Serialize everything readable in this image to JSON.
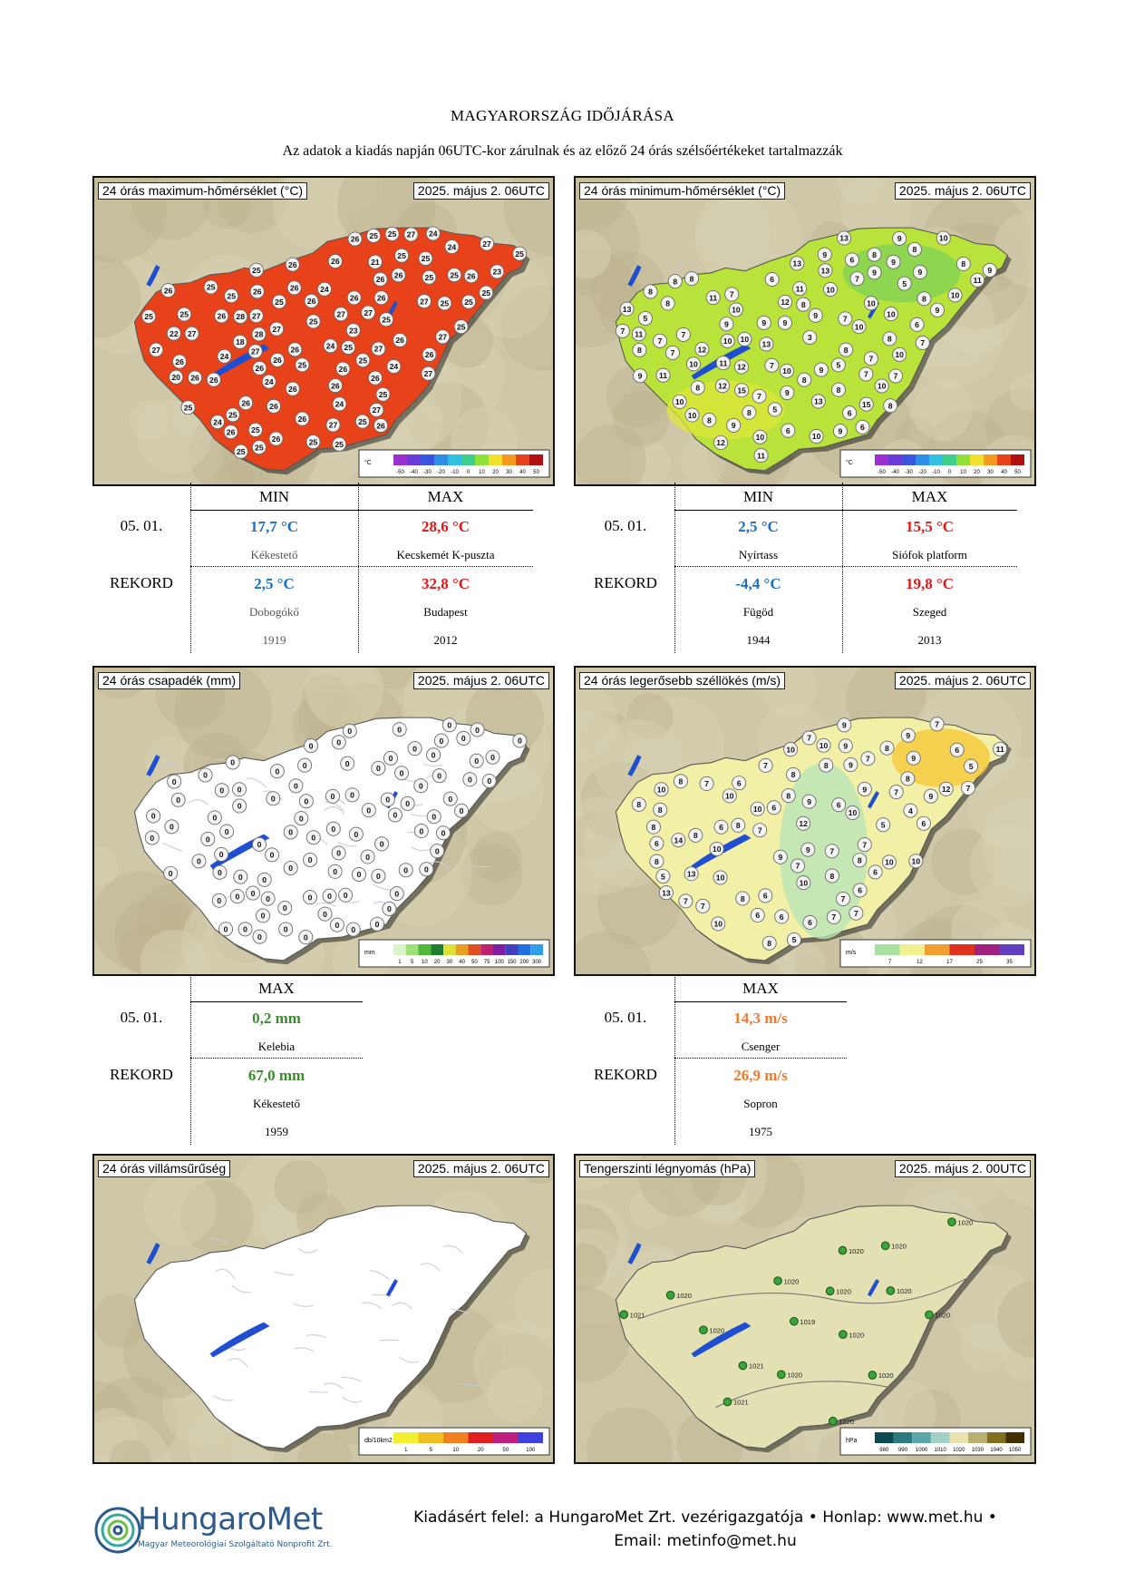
{
  "header": {
    "title": "MAGYARORSZÁG IDŐJÁRÁSA",
    "subtitle": "Az adatok a kiadás napján 06UTC-kor zárulnak és az előző 24 órás szélsőértékeket tartalmazzák"
  },
  "maps": {
    "tmax": {
      "title": "24 órás maximum-hőmérséklet (°C)",
      "date": "2025. május 2. 06UTC",
      "legend_unit": "°C",
      "legend_ticks": [
        "-50",
        "-40",
        "-30",
        "-20",
        "-10",
        "0",
        "10",
        "20",
        "30",
        "40",
        "50"
      ],
      "station_values": [
        "24",
        "26",
        "24",
        "26",
        "23",
        "24",
        "25",
        "25",
        "25",
        "25",
        "27",
        "26",
        "20",
        "25",
        "24",
        "25",
        "25",
        "25",
        "26",
        "25",
        "18",
        "26",
        "25",
        "26",
        "25",
        "25",
        "24",
        "25",
        "25",
        "27",
        "26",
        "25",
        "25",
        "26",
        "27",
        "26",
        "25",
        "21",
        "26",
        "24",
        "26",
        "24",
        "25",
        "23",
        "27",
        "26",
        "26",
        "27",
        "26",
        "25",
        "25",
        "22",
        "26",
        "24",
        "25",
        "26",
        "28",
        "25",
        "27",
        "26",
        "26",
        "24",
        "26",
        "27",
        "26",
        "26",
        "25",
        "27",
        "26",
        "25",
        "27",
        "25",
        "25",
        "25",
        "26",
        "26",
        "26",
        "27",
        "26",
        "25",
        "26",
        "27",
        "26",
        "25",
        "26",
        "25",
        "27",
        "28",
        "26",
        "27",
        "25",
        "27",
        "27",
        "26"
      ]
    },
    "tmin": {
      "title": "24 órás minimum-hőmérséklet (°C)",
      "date": "2025. május 2. 06UTC",
      "legend_unit": "°C",
      "legend_ticks": [
        "-50",
        "-40",
        "-30",
        "-20",
        "-10",
        "0",
        "10",
        "20",
        "30",
        "40",
        "50"
      ],
      "station_values": [
        "8",
        "11",
        "8",
        "8",
        "9",
        "13",
        "10",
        "5",
        "6",
        "3",
        "10",
        "9",
        "10",
        "6",
        "7",
        "12",
        "9",
        "11",
        "10",
        "10",
        "9",
        "7",
        "7",
        "8",
        "5",
        "7",
        "9",
        "7",
        "10",
        "8",
        "13",
        "11",
        "13",
        "9",
        "8",
        "8",
        "10",
        "13",
        "11",
        "10",
        "7",
        "11",
        "10",
        "10",
        "6",
        "9",
        "12",
        "8",
        "13",
        "5",
        "10",
        "8",
        "9",
        "6",
        "10",
        "15",
        "10",
        "9",
        "10",
        "12",
        "6",
        "13",
        "10",
        "8",
        "8",
        "7",
        "8",
        "7",
        "8",
        "10",
        "9",
        "7",
        "6",
        "8",
        "9",
        "15",
        "10",
        "7",
        "9",
        "12",
        "9",
        "7",
        "8",
        "11",
        "8",
        "7",
        "9",
        "5",
        "8",
        "7",
        "11",
        "9",
        "8",
        "12",
        "9"
      ]
    },
    "precip": {
      "title": "24 órás csapadék (mm)",
      "date": "2025. május 2. 06UTC",
      "legend_unit": "mm",
      "legend_ticks": [
        "1",
        "5",
        "10",
        "20",
        "30",
        "40",
        "50",
        "75",
        "100",
        "150",
        "200",
        "300"
      ],
      "station_values": [
        "0",
        "0",
        "0",
        "0",
        "0",
        "0",
        "0",
        "0",
        "0",
        "0",
        "0",
        "0",
        "0",
        "0",
        "0",
        "0",
        "0",
        "0",
        "0",
        "0",
        "0",
        "0",
        "0",
        "0",
        "0",
        "0",
        "0",
        "0",
        "0",
        "0",
        "0",
        "0",
        "0",
        "0",
        "0",
        "0",
        "0",
        "0",
        "0",
        "0",
        "0",
        "0",
        "0",
        "0",
        "0",
        "0",
        "0",
        "0",
        "0",
        "0",
        "0",
        "0",
        "0",
        "0",
        "0",
        "0",
        "0",
        "0",
        "0",
        "0",
        "0",
        "0",
        "0",
        "0",
        "0",
        "0",
        "0",
        "0",
        "0",
        "0",
        "0",
        "0",
        "0",
        "0",
        "0",
        "0",
        "0",
        "0",
        "0",
        "0",
        "0",
        "0",
        "0",
        "0",
        "0",
        "0",
        "0",
        "0",
        "0",
        "0",
        "0",
        "0",
        "0",
        "0"
      ]
    },
    "wind": {
      "title": "24 órás legerősebb széllökés (m/s)",
      "date": "2025. május 2. 06UTC",
      "legend_unit": "m/s",
      "legend_ticks": [
        "7",
        "12",
        "17",
        "25",
        "35"
      ],
      "station_values": [
        "6",
        "13",
        "10",
        "10",
        "6",
        "8",
        "8",
        "12",
        "14",
        "6",
        "5",
        "6",
        "8",
        "7",
        "9",
        "10",
        "10",
        "8",
        "8",
        "6",
        "8",
        "13",
        "5",
        "8",
        "7",
        "12",
        "9",
        "9",
        "7",
        "6",
        "10",
        "10",
        "10",
        "7",
        "9",
        "7",
        "8",
        "11",
        "7",
        "6",
        "7",
        "7",
        "8",
        "7",
        "9",
        "7",
        "10",
        "5",
        "6",
        "8",
        "6",
        "9",
        "6",
        "9",
        "7",
        "7",
        "6",
        "7",
        "10",
        "9",
        "8",
        "7",
        "6",
        "8",
        "9",
        "8",
        "8",
        "10",
        "10",
        "7",
        "7",
        "4",
        "8",
        "8",
        "9",
        "5",
        "10",
        "6"
      ]
    },
    "lightning": {
      "title": "24 órás villámsűrűség",
      "date": "2025. május 2. 06UTC",
      "legend_unit": "db/10km2",
      "legend_ticks": [
        "1",
        "5",
        "10",
        "20",
        "50",
        "100"
      ]
    },
    "pressure": {
      "title": "Tengerszinti légnyomás (hPa)",
      "date": "2025. május 2. 00UTC",
      "legend_unit": "hPa",
      "legend_ticks": [
        "980",
        "990",
        "1000",
        "1010",
        "1020",
        "1030",
        "1040",
        "1050"
      ],
      "station_values": [
        "1021",
        "1021",
        "1020",
        "1020",
        "1020",
        "1020",
        "1021",
        "1020",
        "1020",
        "1020",
        "1020",
        "1020",
        "1020",
        "1020",
        "1020",
        "1019",
        "1020"
      ]
    }
  },
  "temp_table_left": {
    "col_min": "MIN",
    "col_max": "MAX",
    "row1_label": "05. 01.",
    "row1_min_value": "17,7 °C",
    "row1_min_place": "Kékestető",
    "row1_max_value": "28,6 °C",
    "row1_max_place": "Kecskemét K-puszta",
    "row2_label": "REKORD",
    "row2_min_value": "2,5 °C",
    "row2_min_place": "Dobogókő",
    "row2_min_year": "1919",
    "row2_max_value": "32,8 °C",
    "row2_max_place": "Budapest",
    "row2_max_year": "2012"
  },
  "temp_table_right": {
    "col_min": "MIN",
    "col_max": "MAX",
    "row1_label": "05. 01.",
    "row1_min_value": "2,5 °C",
    "row1_min_place": "Nyírtass",
    "row1_max_value": "15,5 °C",
    "row1_max_place": "Siófok platform",
    "row2_label": "REKORD",
    "row2_min_value": "-4,4 °C",
    "row2_min_place": "Fügöd",
    "row2_min_year": "1944",
    "row2_max_value": "19,8 °C",
    "row2_max_place": "Szeged",
    "row2_max_year": "2013"
  },
  "precip_table": {
    "col_max": "MAX",
    "row1_label": "05. 01.",
    "row1_value": "0,2 mm",
    "row1_place": "Kelebia",
    "row2_label": "REKORD",
    "row2_value": "67,0 mm",
    "row2_place": "Kékestető",
    "row2_year": "1959"
  },
  "wind_table": {
    "col_max": "MAX",
    "row1_label": "05. 01.",
    "row1_value": "14,3 m/s",
    "row1_place": "Csenger",
    "row2_label": "REKORD",
    "row2_value": "26,9 m/s",
    "row2_place": "Sopron",
    "row2_year": "1975"
  },
  "footer": {
    "logo_name": "HungaroMet",
    "logo_sub": "Magyar Meteorológiai Szolgáltató Nonprofit Zrt.",
    "line1": "Kiadásért felel: a HungaroMet Zrt. vezérigazgatója • Honlap: www.met.hu •",
    "line2": "Email: metinfo@met.hu"
  },
  "colors": {
    "tmax_fill": "#e8421a",
    "tmin_fill": "#b9e23a",
    "record_min": "#1a6fc0",
    "record_max": "#e01818",
    "precip_value": "#3b8a2e",
    "wind_value": "#ef7a2e",
    "brand": "#2c5a8c"
  }
}
